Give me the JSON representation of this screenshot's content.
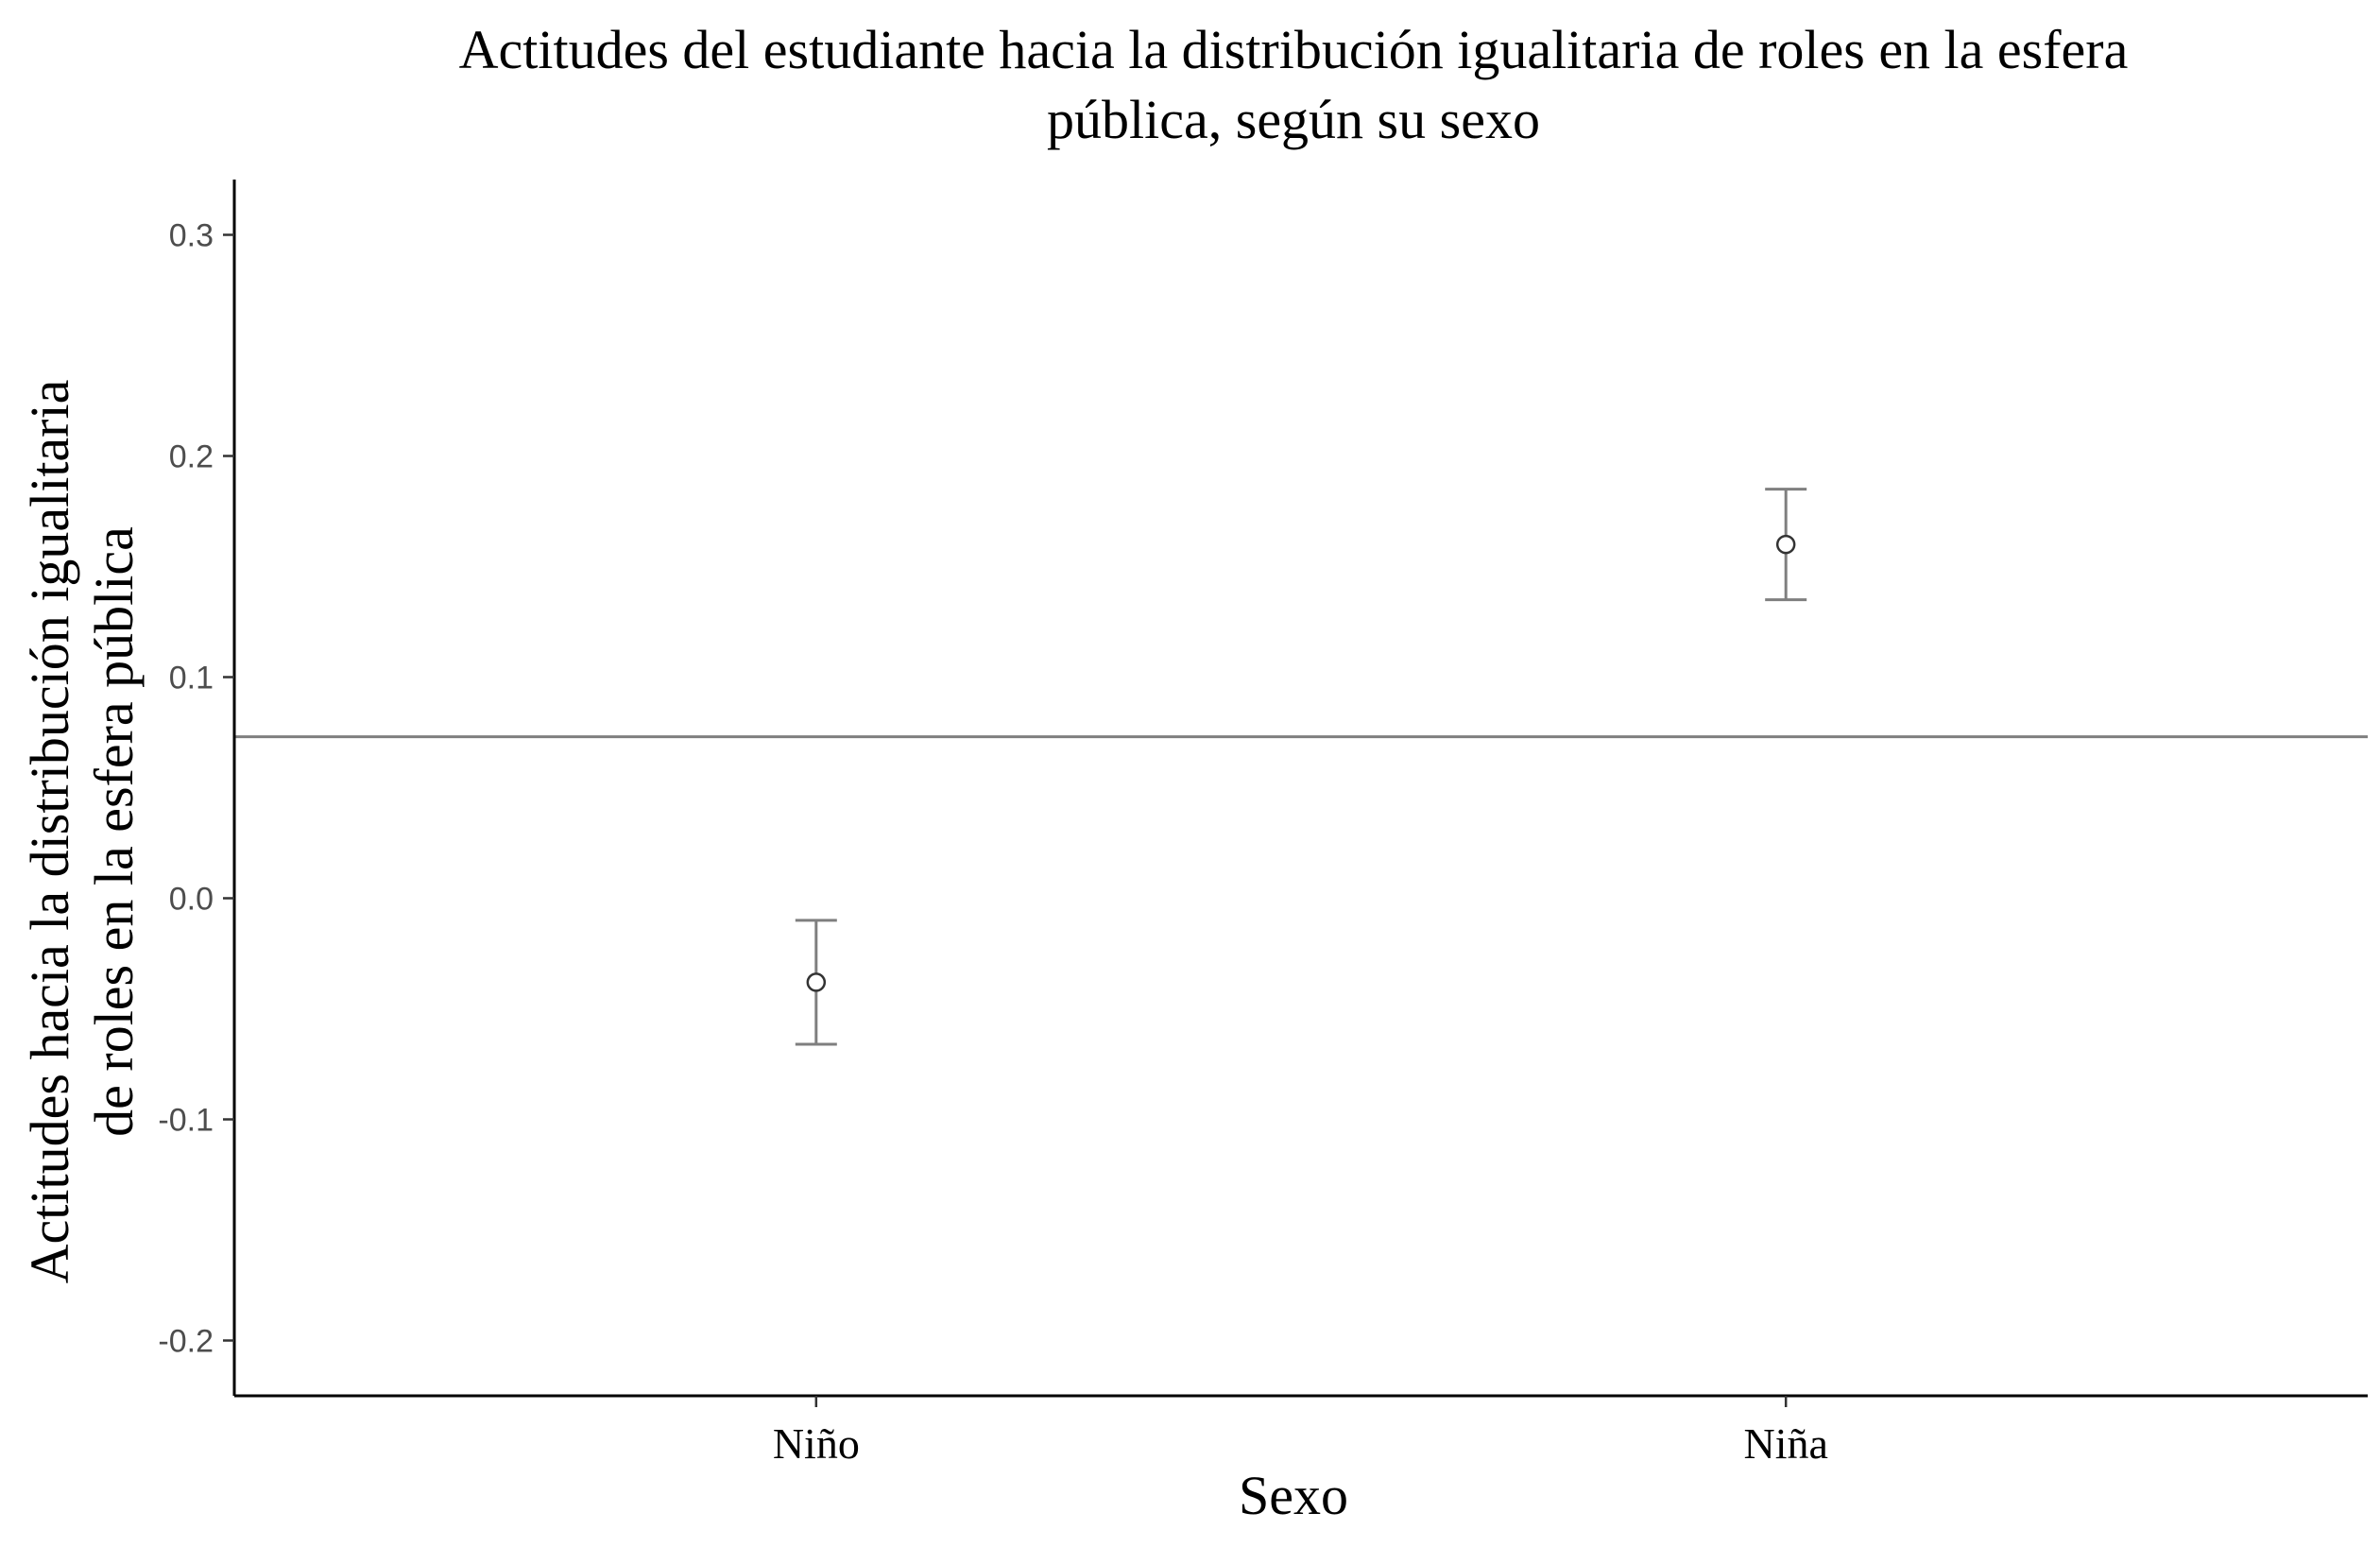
{
  "chart_data": {
    "type": "scatter",
    "title": "Actitudes del estudiante hacia la distribución igualitaria de roles en la esfera pública, según su sexo",
    "title_lines": [
      "Actitudes del estudiante hacia la distribución igualitaria de roles en la esfera",
      "pública, según su sexo"
    ],
    "xlabel": "Sexo",
    "ylabel": "Actitudes hacia la distribución igualitaria de roles en la esfera pública",
    "ylabel_lines": [
      "Actitudes hacia la distribución igualitaria",
      "de roles en la esfera pública"
    ],
    "categories": [
      "Niño",
      "Niña"
    ],
    "values": [
      -0.038,
      0.16
    ],
    "lower": [
      -0.066,
      0.135
    ],
    "upper": [
      -0.01,
      0.185
    ],
    "reference_line": 0.073,
    "ylim": [
      -0.225,
      0.325
    ],
    "yticks": [
      -0.2,
      -0.1,
      0.0,
      0.1,
      0.2,
      0.3
    ],
    "ytick_labels": [
      "-0.2",
      "-0.1",
      "0.0",
      "0.1",
      "0.2",
      "0.3"
    ],
    "grid": false,
    "legend": "none",
    "colors": {
      "errorbar": "#7f7f7f",
      "point_fill": "#ffffff",
      "point_stroke": "#333333",
      "reference_line": "#7f7f7f"
    }
  }
}
